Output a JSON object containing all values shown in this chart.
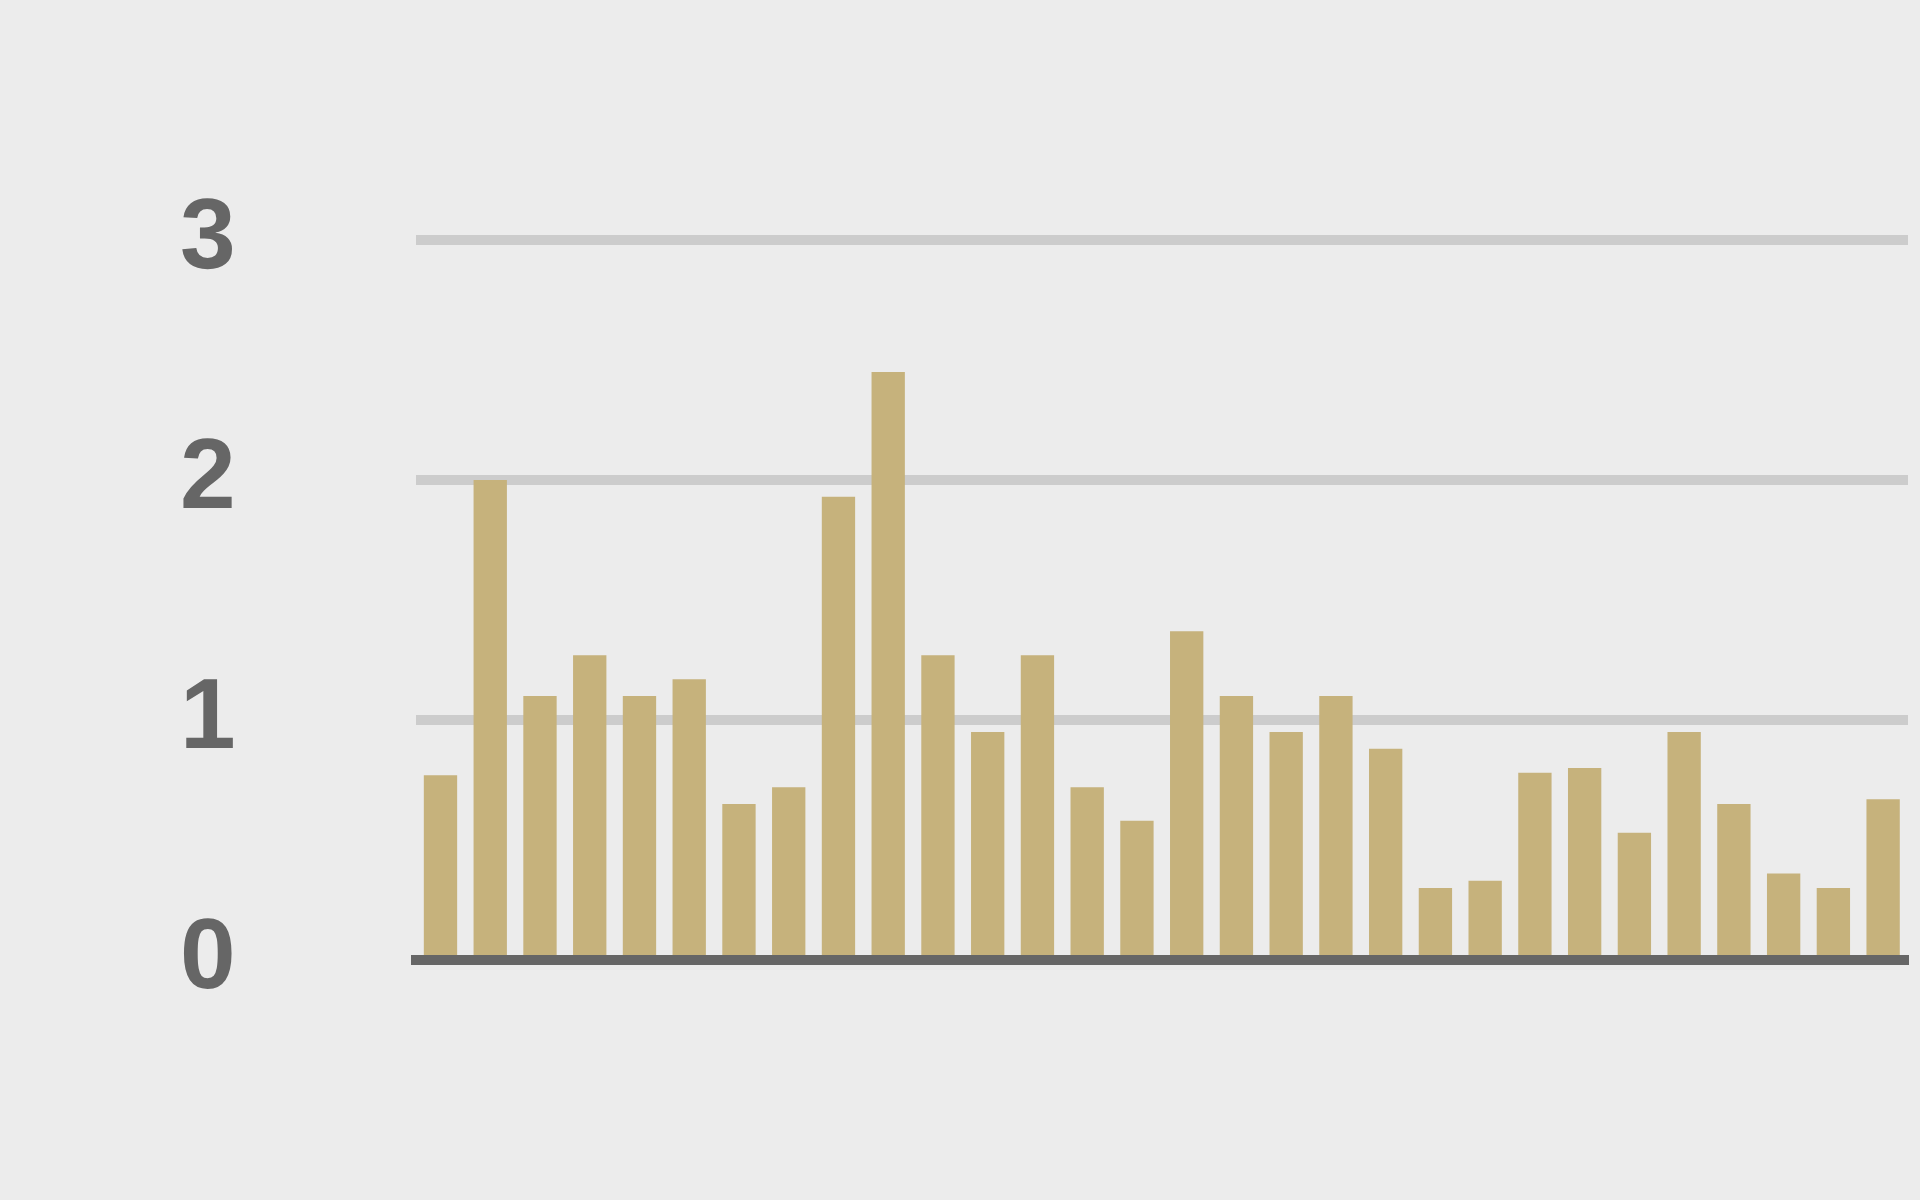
{
  "chart_data": {
    "type": "bar",
    "categories": [
      null,
      null,
      null,
      null,
      null,
      null,
      null,
      null,
      null,
      null,
      null,
      null,
      null,
      null,
      null,
      null,
      null,
      null,
      null,
      null,
      null,
      null,
      null,
      null,
      null,
      null,
      null,
      null,
      null,
      null
    ],
    "values": [
      0.77,
      2.0,
      1.1,
      1.27,
      1.1,
      1.17,
      0.65,
      0.72,
      1.93,
      2.45,
      1.27,
      0.95,
      1.27,
      0.72,
      0.58,
      1.37,
      1.1,
      0.95,
      1.1,
      0.88,
      0.3,
      0.33,
      0.78,
      0.8,
      0.53,
      0.95,
      0.65,
      0.36,
      0.3,
      0.67
    ],
    "color": "#c6b27c",
    "ylim": [
      0,
      3
    ],
    "yticks": [
      0,
      1,
      2,
      3
    ],
    "grid": "y",
    "tick_labels": "y"
  }
}
